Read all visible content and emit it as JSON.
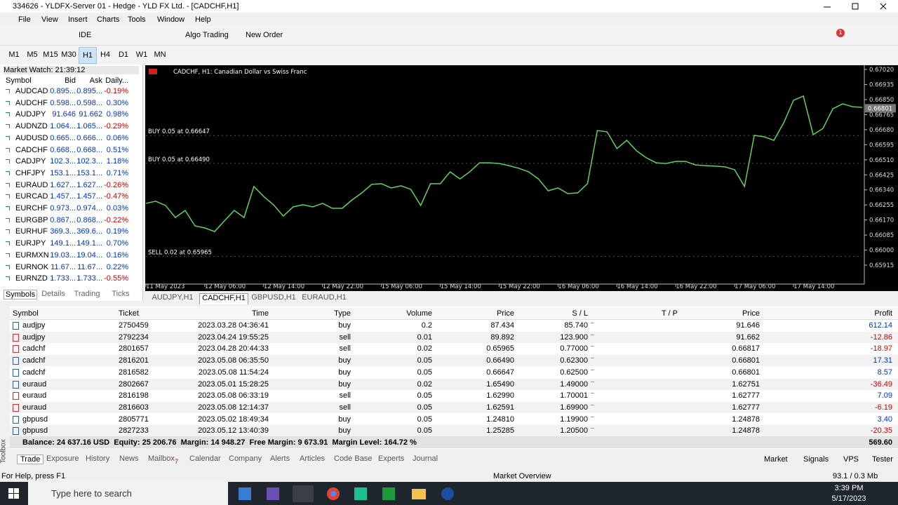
{
  "title_bar": {
    "title": "334626 - YLDFX-Server 01 - Hedge - YLD FX Ltd. - [CADCHF,H1]"
  },
  "menu": [
    "File",
    "View",
    "Insert",
    "Charts",
    "Tools",
    "Window",
    "Help"
  ],
  "toolbar": {
    "ide": "IDE",
    "algo": "Algo Trading",
    "new_order": "New Order",
    "badge": "1"
  },
  "timeframes": {
    "items": [
      "M1",
      "M5",
      "M15",
      "M30",
      "H1",
      "H4",
      "D1",
      "W1",
      "MN"
    ],
    "active": 4
  },
  "market_watch": {
    "title": "Market Watch: 21:39:12",
    "columns": [
      "Symbol",
      "Bid",
      "Ask",
      "Daily..."
    ],
    "rows": [
      [
        "AUDCAD",
        "0.895...",
        "0.895...",
        "-0.19%"
      ],
      [
        "AUDCHF",
        "0.598...",
        "0.598...",
        "0.30%"
      ],
      [
        "AUDJPY",
        "91.646",
        "91.662",
        "0.98%"
      ],
      [
        "AUDNZD",
        "1.064...",
        "1.065...",
        "-0.29%"
      ],
      [
        "AUDUSD",
        "0.665...",
        "0.666...",
        "0.06%"
      ],
      [
        "CADCHF",
        "0.668...",
        "0.668...",
        "0.51%"
      ],
      [
        "CADJPY",
        "102.3...",
        "102.3...",
        "1.18%"
      ],
      [
        "CHFJPY",
        "153.1...",
        "153.1...",
        "0.71%"
      ],
      [
        "EURAUD",
        "1.627...",
        "1.627...",
        "-0.26%"
      ],
      [
        "EURCAD",
        "1.457...",
        "1.457...",
        "-0.47%"
      ],
      [
        "EURCHF",
        "0.973...",
        "0.974...",
        "0.03%"
      ],
      [
        "EURGBP",
        "0.867...",
        "0.868...",
        "-0.22%"
      ],
      [
        "EURHUF",
        "369.3...",
        "369.6...",
        "0.19%"
      ],
      [
        "EURJPY",
        "149.1...",
        "149.1...",
        "0.70%"
      ],
      [
        "EURMXN",
        "19.03...",
        "19.04...",
        "0.16%"
      ],
      [
        "EURNOK",
        "11.67...",
        "11.67...",
        "0.22%"
      ],
      [
        "EURNZD",
        "1.733...",
        "1.733...",
        "-0.55%"
      ]
    ],
    "tabs": [
      "Symbols",
      "Details",
      "Trading",
      "Ticks"
    ]
  },
  "chart_data": {
    "type": "line",
    "title": "CADCHF, H1:  Canadian Dollar vs Swiss Franc",
    "color": "#5fd35f",
    "categories": [
      "11 May 2023",
      null,
      null,
      null,
      null,
      null,
      "12 May 06:00",
      null,
      null,
      null,
      null,
      null,
      "12 May 14:00",
      null,
      null,
      null,
      null,
      null,
      "12 May 22:00",
      null,
      null,
      null,
      null,
      null,
      "15 May 06:00",
      null,
      null,
      null,
      null,
      null,
      "15 May 14:00",
      null,
      null,
      null,
      null,
      null,
      "15 May 22:00",
      null,
      null,
      null,
      null,
      null,
      "16 May 06:00",
      null,
      null,
      null,
      null,
      null,
      "16 May 14:00",
      null,
      null,
      null,
      null,
      null,
      "16 May 22:00",
      null,
      null,
      null,
      null,
      null,
      "17 May 06:00",
      null,
      null,
      null,
      null,
      null,
      "17 May 14:00",
      null,
      null,
      null,
      null,
      null,
      null,
      null
    ],
    "series": [
      {
        "name": "CADCHF",
        "color": "#5fd35f",
        "values": [
          0.66264,
          0.66276,
          0.66252,
          0.66184,
          0.66224,
          0.66137,
          0.66125,
          0.66105,
          0.66165,
          0.66224,
          0.66184,
          0.66359,
          0.66303,
          0.66256,
          0.66192,
          0.66244,
          0.66256,
          0.66244,
          0.66264,
          0.66236,
          0.66236,
          0.66283,
          0.66323,
          0.66371,
          0.66375,
          0.66351,
          0.66363,
          0.66343,
          0.66252,
          0.66375,
          0.66375,
          0.66442,
          0.66402,
          0.66442,
          0.66493,
          0.66493,
          0.66489,
          0.66477,
          0.66462,
          0.66442,
          0.66402,
          0.66335,
          0.66351,
          0.66319,
          0.66323,
          0.66375,
          0.66675,
          0.66668,
          0.66573,
          0.6662,
          0.66561,
          0.66521,
          0.66493,
          0.66489,
          0.66501,
          0.66501,
          0.66481,
          0.66477,
          0.66474,
          0.6647,
          0.66454,
          0.66359,
          0.66648,
          0.6664,
          0.6662,
          0.66719,
          0.66846,
          0.6687,
          0.66652,
          0.66687,
          0.66798,
          0.66826,
          0.6681,
          0.66806
        ]
      }
    ],
    "ylim": [
      0.65828,
      0.6704
    ],
    "yticks": [
      {
        "value": 0.6702,
        "label": "0.67020"
      },
      {
        "value": 0.66935,
        "label": "0.66935"
      },
      {
        "value": 0.6685,
        "label": "0.66850"
      },
      {
        "value": 0.66765,
        "label": "0.66765"
      },
      {
        "value": 0.6668,
        "label": "0.66680"
      },
      {
        "value": 0.66595,
        "label": "0.66595"
      },
      {
        "value": 0.6651,
        "label": "0.66510"
      },
      {
        "value": 0.66425,
        "label": "0.66425"
      },
      {
        "value": 0.6634,
        "label": "0.66340"
      },
      {
        "value": 0.66255,
        "label": "0.66255"
      },
      {
        "value": 0.6617,
        "label": "0.66170"
      },
      {
        "value": 0.66085,
        "label": "0.66085"
      },
      {
        "value": 0.66,
        "label": "0.66000"
      },
      {
        "value": 0.65915,
        "label": "0.65915"
      }
    ],
    "last_price": {
      "value": 0.66801,
      "label": "0.66801"
    },
    "orders": [
      {
        "label": "BUY 0.05 at 0.66647",
        "price": 0.66647
      },
      {
        "label": "BUY 0.05 at 0.66490",
        "price": 0.6649
      },
      {
        "label": "SELL 0.02 at 0.65965",
        "price": 0.65965
      }
    ],
    "grid": false
  },
  "chart_tabs": {
    "items": [
      "AUDJPY,H1",
      "CADCHF,H1",
      "GBPUSD,H1",
      "EURAUD,H1"
    ],
    "active": 1
  },
  "trades": {
    "columns": [
      "Symbol",
      "Ticket",
      "Time",
      "Type",
      "Volume",
      "Price",
      "S / L",
      "T / P",
      "Price",
      "Profit"
    ],
    "rows": [
      [
        "audjpy",
        "2750459",
        "2023.03.28 04:36:41",
        "buy",
        "0.2",
        "87.434",
        "85.740",
        null,
        "91.646",
        "612.14"
      ],
      [
        "audjpy",
        "2792234",
        "2023.04.24 19:55:25",
        "sell",
        "0.01",
        "89.892",
        "123.900",
        null,
        "91.662",
        "-12.86"
      ],
      [
        "cadchf",
        "2801657",
        "2023.04.28 20:44:33",
        "sell",
        "0.02",
        "0.65965",
        "0.77000",
        null,
        "0.66817",
        "-18.97"
      ],
      [
        "cadchf",
        "2816201",
        "2023.05.08 06:35:50",
        "buy",
        "0.05",
        "0.66490",
        "0.62300",
        null,
        "0.66801",
        "17.31"
      ],
      [
        "cadchf",
        "2816582",
        "2023.05.08 11:54:24",
        "buy",
        "0.05",
        "0.66647",
        "0.62500",
        null,
        "0.66801",
        "8.57"
      ],
      [
        "euraud",
        "2802667",
        "2023.05.01 15:28:25",
        "buy",
        "0.02",
        "1.65490",
        "1.49000",
        null,
        "1.62751",
        "-36.49"
      ],
      [
        "euraud",
        "2816198",
        "2023.05.08 06:33:19",
        "sell",
        "0.05",
        "1.62990",
        "1.70001",
        null,
        "1.62777",
        "7.09"
      ],
      [
        "euraud",
        "2816603",
        "2023.05.08 12:14:37",
        "sell",
        "0.05",
        "1.62591",
        "1.69900",
        null,
        "1.62777",
        "-6.19"
      ],
      [
        "gbpusd",
        "2805771",
        "2023.05.02 18:49:34",
        "buy",
        "0.05",
        "1.24810",
        "1.19900",
        null,
        "1.24878",
        "3.40"
      ],
      [
        "gbpusd",
        "2827233",
        "2023.05.12 13:40:39",
        "buy",
        "0.05",
        "1.25285",
        "1.20500",
        null,
        "1.24878",
        "-20.35"
      ]
    ],
    "summary": "Balance: 24 637.16 USD  Equity: 25 206.76  Margin: 14 948.27  Free Margin: 9 673.91  Margin Level: 164.72 %",
    "total": "569.60"
  },
  "toolbox": {
    "label": "Toolbox",
    "tabs": [
      "Trade",
      "Exposure",
      "History",
      "News",
      "Mailbox",
      "Calendar",
      "Company",
      "Alerts",
      "Articles",
      "Code Base",
      "Experts",
      "Journal"
    ],
    "mailbox_count": "7",
    "right": [
      "Market",
      "Signals",
      "VPS",
      "Tester"
    ]
  },
  "status_bar": {
    "help": "For Help, press F1",
    "middle": "Market Overview",
    "memory": "93.1 / 0.3 Mb"
  },
  "taskbar": {
    "search": "Type here to search",
    "time": "3:39 PM",
    "date": "5/17/2023"
  }
}
